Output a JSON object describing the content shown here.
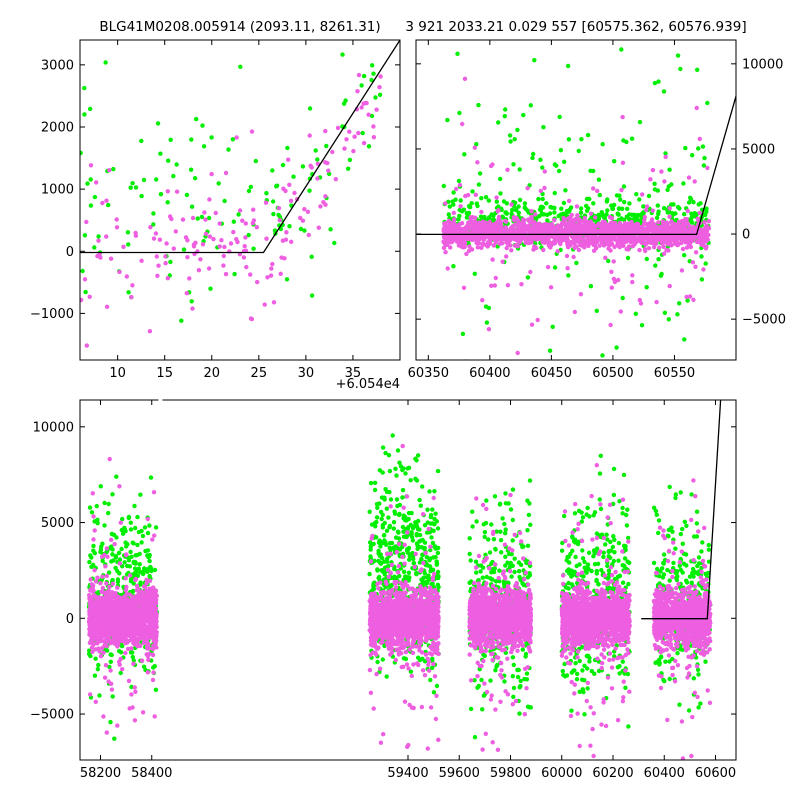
{
  "colors": {
    "pink": "#ee5ee0",
    "green": "#00ee00",
    "line": "#000000",
    "frame": "#000000"
  },
  "chart_data": [
    {
      "type": "scatter",
      "title": "BLG41M0208.005914 (2093.11, 8261.31)",
      "xlim": [
        6,
        40
      ],
      "ylim": [
        -1750,
        3400
      ],
      "xticks": [
        10,
        15,
        20,
        25,
        30,
        35
      ],
      "yticks": [
        -1000,
        0,
        1000,
        2000,
        3000
      ],
      "x_offset_label": "+6.054e4",
      "series": [
        {
          "color": "pink",
          "seed": 11,
          "n": 170,
          "segments": [
            {
              "x": [
                6,
                26
              ],
              "center": 200,
              "spread": 380,
              "tail": 0.35
            },
            {
              "x": [
                26,
                38
              ],
              "slope_from": [
                26,
                0
              ],
              "slope": 200,
              "spread": 420
            }
          ]
        },
        {
          "color": "green",
          "seed": 23,
          "n": 140,
          "segments": [
            {
              "x": [
                6,
                26
              ],
              "center": 700,
              "spread": 600,
              "tail": 0.5
            },
            {
              "x": [
                26,
                38
              ],
              "slope_from": [
                26,
                400
              ],
              "slope": 190,
              "spread": 550
            }
          ]
        }
      ],
      "model_line": [
        [
          6,
          -20
        ],
        [
          25.5,
          -20
        ],
        [
          40,
          3400
        ]
      ]
    },
    {
      "type": "scatter",
      "title": "3 921 2033.21 0.029 557 [60575.362, 60576.939]",
      "xlim": [
        60340,
        60600
      ],
      "ylim": [
        -7400,
        11400
      ],
      "xticks": [
        60350,
        60400,
        60450,
        60500,
        60550
      ],
      "yticks": [
        -5000,
        0,
        5000,
        10000
      ],
      "y_axis_side": "right",
      "series": [
        {
          "color": "pink",
          "seed": 37,
          "n": 1800,
          "segments": [
            {
              "x": [
                60362,
                60578
              ],
              "center": 0,
              "spread": 380,
              "tail": 0.06,
              "tail_spread": 2800
            }
          ]
        },
        {
          "color": "green",
          "seed": 41,
          "n": 650,
          "segments": [
            {
              "x": [
                60362,
                60578
              ],
              "center": 800,
              "spread": 700,
              "tail": 0.25,
              "tail_spread": 4500
            }
          ]
        }
      ],
      "model_line": [
        [
          60340,
          -20
        ],
        [
          60568,
          -20
        ],
        [
          60600,
          8100
        ]
      ]
    },
    {
      "type": "scatter",
      "title": "",
      "xlim": [
        58120,
        60680
      ],
      "ylim": [
        -7400,
        11400
      ],
      "xticks": [
        58200,
        58400,
        59400,
        59600,
        59800,
        60000,
        60200,
        60400,
        60600
      ],
      "yticks": [
        -5000,
        0,
        5000,
        10000
      ],
      "season_gaps": [
        [
          58430,
          59230
        ]
      ],
      "seasons": [
        {
          "x": [
            58155,
            58420
          ],
          "green_center": 1800,
          "green_spread": 2800,
          "n_pink": 1500,
          "n_green": 420
        },
        {
          "x": [
            59250,
            59520
          ],
          "green_center": 3200,
          "green_spread": 3000,
          "n_pink": 1500,
          "n_green": 650
        },
        {
          "x": [
            59640,
            59880
          ],
          "green_center": 1200,
          "green_spread": 3000,
          "n_pink": 1400,
          "n_green": 420
        },
        {
          "x": [
            60000,
            60265
          ],
          "green_center": 1500,
          "green_spread": 3000,
          "n_pink": 1400,
          "n_green": 450
        },
        {
          "x": [
            60360,
            60580
          ],
          "green_center": 1500,
          "green_spread": 3000,
          "n_pink": 1100,
          "n_green": 300
        }
      ],
      "model_line": [
        [
          60310,
          -20
        ],
        [
          60568,
          -20
        ],
        [
          60620,
          11400
        ]
      ]
    }
  ]
}
